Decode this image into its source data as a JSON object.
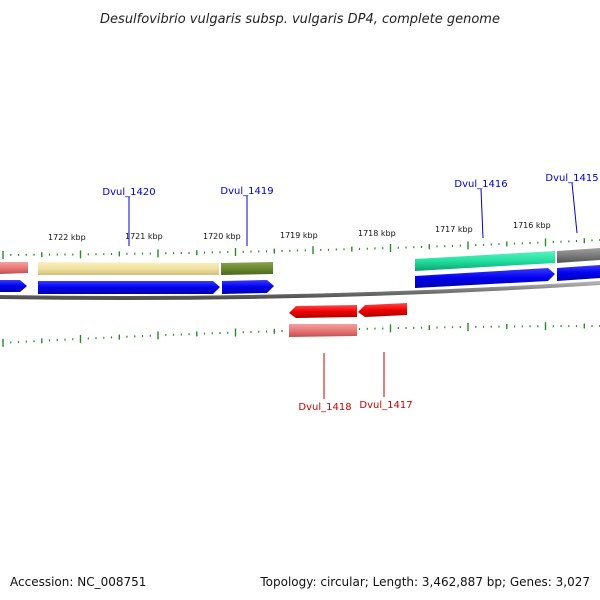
{
  "title": "Desulfovibrio vulgaris subsp. vulgaris DP4, complete genome",
  "footer": {
    "accession": "Accession: NC_008751",
    "summary": "Topology: circular; Length: 3,462,887 bp; Genes: 3,027"
  },
  "colors": {
    "forward_tick": "#2a8a2a",
    "reverse_tick": "#2a8a2a",
    "backbone": "#808080",
    "cds_forward": "#0000ee",
    "cds_reverse": "#ee0000",
    "label_forward": "#0000cc",
    "label_reverse": "#cc0000"
  },
  "scale_labels": [
    "1722 kbp",
    "1721 kbp",
    "1720 kbp",
    "1719 kbp",
    "1718 kbp",
    "1717 kbp",
    "1716 kbp"
  ],
  "genes_top": [
    {
      "name": "Dvul_1420"
    },
    {
      "name": "Dvul_1419"
    },
    {
      "name": "Dvul_1416"
    },
    {
      "name": "Dvul_1415"
    }
  ],
  "genes_bottom": [
    {
      "name": "Dvul_1418"
    },
    {
      "name": "Dvul_1417"
    }
  ]
}
